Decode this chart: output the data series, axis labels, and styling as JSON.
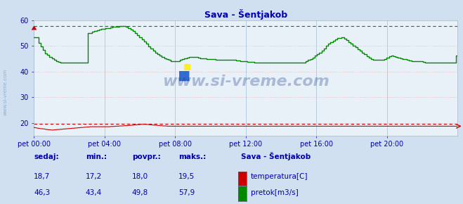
{
  "title": "Sava - Šentjakob",
  "bg_color": "#d0e0f0",
  "plot_bg_color": "#e8f0f8",
  "grid_color_v": "#b8cce0",
  "grid_color_h": "#e8b8b8",
  "title_color": "#0000bb",
  "label_color": "#0000aa",
  "tick_color": "#0000aa",
  "xlim_min": 0,
  "xlim_max": 288,
  "ylim_min": 15,
  "ylim_max": 60,
  "yticks": [
    20,
    30,
    40,
    50,
    60
  ],
  "xtick_positions": [
    0,
    48,
    96,
    144,
    192,
    240
  ],
  "xtick_labels": [
    "pet 00:00",
    "pet 04:00",
    "pet 08:00",
    "pet 12:00",
    "pet 16:00",
    "pet 20:00"
  ],
  "temp_color": "#cc0000",
  "flow_color": "#008800",
  "temp_max_line": 19.5,
  "flow_max_line": 57.9,
  "watermark": "www.si-vreme.com",
  "watermark_color": "#1a3a8a",
  "sidebar_text": "www.si-vreme.com",
  "legend_title": "Sava - Šentjakob",
  "legend_items": [
    {
      "label": "temperatura[C]",
      "color": "#cc0000"
    },
    {
      "label": "pretok[m3/s]",
      "color": "#008800"
    }
  ],
  "table_headers": [
    "sedaj:",
    "min.:",
    "povpr.:",
    "maks.:"
  ],
  "table_data": [
    [
      "18,7",
      "17,2",
      "18,0",
      "19,5"
    ],
    [
      "46,3",
      "43,4",
      "49,8",
      "57,9"
    ]
  ],
  "temp_data": [
    18.2,
    18.1,
    18.0,
    17.9,
    17.8,
    17.7,
    17.7,
    17.6,
    17.5,
    17.4,
    17.3,
    17.3,
    17.2,
    17.2,
    17.3,
    17.3,
    17.4,
    17.4,
    17.5,
    17.5,
    17.6,
    17.6,
    17.7,
    17.7,
    17.8,
    17.8,
    17.9,
    17.9,
    18.0,
    18.0,
    18.1,
    18.1,
    18.2,
    18.2,
    18.3,
    18.3,
    18.4,
    18.4,
    18.5,
    18.5,
    18.5,
    18.5,
    18.5,
    18.5,
    18.5,
    18.5,
    18.5,
    18.5,
    18.5,
    18.5,
    18.5,
    18.5,
    18.6,
    18.6,
    18.6,
    18.7,
    18.7,
    18.7,
    18.8,
    18.8,
    18.8,
    18.9,
    18.9,
    18.9,
    19.0,
    19.0,
    19.1,
    19.1,
    19.2,
    19.2,
    19.3,
    19.3,
    19.4,
    19.4,
    19.5,
    19.4,
    19.4,
    19.3,
    19.3,
    19.2,
    19.2,
    19.1,
    19.1,
    19.0,
    19.0,
    18.9,
    18.9,
    18.8,
    18.8,
    18.8,
    18.7,
    18.7,
    18.7,
    18.7,
    18.7,
    18.7,
    18.7,
    18.7,
    18.7,
    18.7,
    18.7,
    18.7,
    18.7,
    18.7,
    18.7,
    18.7,
    18.7,
    18.7,
    18.7,
    18.7,
    18.7,
    18.7,
    18.7,
    18.7,
    18.7,
    18.7,
    18.7,
    18.7,
    18.7,
    18.7,
    18.7,
    18.7,
    18.7,
    18.7,
    18.7,
    18.7,
    18.7,
    18.7,
    18.7,
    18.7,
    18.7,
    18.7,
    18.7,
    18.7,
    18.7,
    18.7,
    18.7,
    18.7,
    18.7,
    18.7,
    18.7,
    18.7,
    18.7,
    18.7,
    18.7,
    18.7,
    18.7,
    18.7,
    18.7,
    18.7,
    18.7,
    18.7,
    18.7,
    18.7,
    18.7,
    18.7,
    18.7,
    18.7,
    18.7,
    18.7,
    18.7,
    18.7,
    18.7,
    18.7,
    18.7,
    18.7,
    18.7,
    18.7,
    18.7,
    18.7,
    18.7,
    18.7,
    18.7,
    18.7,
    18.7,
    18.7,
    18.7,
    18.7,
    18.7,
    18.7,
    18.7,
    18.7,
    18.7,
    18.7,
    18.7,
    18.7,
    18.7,
    18.7,
    18.7,
    18.7,
    18.7,
    18.7,
    18.7,
    18.7,
    18.7,
    18.7,
    18.7,
    18.7,
    18.7,
    18.7,
    18.7,
    18.7,
    18.7,
    18.7,
    18.7,
    18.7,
    18.7,
    18.7,
    18.7,
    18.7,
    18.7,
    18.7,
    18.7,
    18.7,
    18.7,
    18.7,
    18.7,
    18.7,
    18.7,
    18.7,
    18.7,
    18.7,
    18.7,
    18.7,
    18.7,
    18.7,
    18.7,
    18.7,
    18.7,
    18.7,
    18.7,
    18.7,
    18.7,
    18.7,
    18.7,
    18.7,
    18.7,
    18.7,
    18.7,
    18.7,
    18.7,
    18.7,
    18.7,
    18.7,
    18.7,
    18.7,
    18.7,
    18.7,
    18.7,
    18.7,
    18.7,
    18.7,
    18.7,
    18.7,
    18.7,
    18.7,
    18.7,
    18.7,
    18.7,
    18.7,
    18.7,
    18.7,
    18.7,
    18.7,
    18.7,
    18.7,
    18.7,
    18.7,
    18.7,
    18.7,
    18.7,
    18.7,
    18.7,
    18.7,
    18.7,
    18.7,
    18.7,
    18.7,
    18.7,
    18.7,
    18.7,
    18.7,
    18.7,
    18.7,
    18.7,
    18.7
  ],
  "flow_data": [
    53.4,
    53.4,
    53.4,
    53.4,
    51.2,
    51.2,
    49.8,
    49.8,
    48.5,
    48.5,
    47.2,
    47.2,
    46.5,
    46.5,
    45.8,
    45.8,
    45.2,
    45.2,
    44.5,
    44.5,
    44.1,
    44.1,
    43.7,
    43.7,
    43.4,
    43.4,
    43.4,
    43.4,
    43.4,
    43.4,
    43.4,
    43.4,
    43.4,
    43.4,
    43.4,
    43.4,
    43.4,
    43.4,
    43.4,
    43.4,
    43.4,
    43.4,
    43.4,
    43.4,
    43.4,
    43.4,
    43.4,
    43.4,
    55.0,
    55.0,
    55.0,
    55.0,
    55.5,
    55.5,
    55.8,
    55.8,
    56.2,
    56.2,
    56.5,
    56.5,
    56.7,
    56.7,
    56.8,
    56.8,
    57.0,
    57.0,
    57.1,
    57.1,
    57.2,
    57.2,
    57.4,
    57.4,
    57.5,
    57.5,
    57.6,
    57.6,
    57.7,
    57.7,
    57.8,
    57.8,
    57.9,
    57.9,
    57.5,
    57.5,
    57.0,
    57.0,
    56.5,
    56.5,
    55.8,
    55.8,
    55.0,
    55.0,
    54.2,
    54.2,
    53.4,
    53.4,
    52.6,
    52.6,
    51.8,
    51.8,
    50.8,
    50.8,
    49.8,
    49.8,
    49.0,
    49.0,
    48.2,
    48.2,
    47.5,
    47.5,
    46.8,
    46.8,
    46.2,
    46.2,
    45.6,
    45.6,
    45.2,
    45.2,
    44.8,
    44.8,
    44.5,
    44.5,
    44.2,
    44.2,
    44.0,
    44.0,
    44.0,
    44.0,
    44.2,
    44.2,
    44.5,
    44.5,
    44.8,
    44.8,
    45.2,
    45.2,
    45.5,
    45.5,
    45.7,
    45.7,
    45.8,
    45.8,
    45.7,
    45.7,
    45.6,
    45.6,
    45.4,
    45.4,
    45.3,
    45.3,
    45.2,
    45.2,
    45.1,
    45.1,
    45.0,
    45.0,
    45.0,
    45.0,
    44.9,
    44.9,
    44.8,
    44.8,
    44.7,
    44.7,
    44.6,
    44.6,
    44.5,
    44.5,
    44.5,
    44.5,
    44.5,
    44.5,
    44.5,
    44.5,
    44.5,
    44.5,
    44.5,
    44.5,
    44.5,
    44.5,
    44.4,
    44.4,
    44.3,
    44.3,
    44.2,
    44.2,
    44.1,
    44.1,
    44.0,
    44.0,
    43.9,
    43.9,
    43.8,
    43.8,
    43.7,
    43.7,
    43.6,
    43.6,
    43.5,
    43.5,
    43.5,
    43.5,
    43.5,
    43.5,
    43.4,
    43.4,
    43.5,
    43.5,
    43.5,
    43.5,
    43.5,
    43.5,
    43.5,
    43.5,
    43.5,
    43.5,
    43.5,
    43.5,
    43.5,
    43.5,
    43.5,
    43.5,
    43.5,
    43.5,
    43.5,
    43.5,
    43.5,
    43.5,
    43.5,
    43.5,
    43.5,
    43.5,
    43.5,
    43.5,
    43.5,
    43.5,
    43.5,
    43.5,
    43.5,
    43.5,
    43.5,
    43.5,
    44.0,
    44.0,
    44.5,
    44.5,
    45.0,
    45.0,
    45.5,
    45.5,
    46.2,
    46.2,
    46.9,
    46.9,
    47.5,
    47.5,
    48.2,
    48.2,
    49.0,
    49.0,
    50.0,
    50.0,
    51.0,
    51.0,
    51.5,
    51.5,
    52.0,
    52.0,
    52.5,
    52.5,
    53.0,
    53.0,
    53.2,
    53.2,
    53.4,
    53.4,
    52.8,
    52.8,
    52.2,
    52.2,
    51.5,
    51.5,
    50.8,
    50.8,
    50.2,
    50.2,
    49.5,
    49.5,
    48.8,
    48.8,
    48.1,
    48.1,
    47.5,
    47.5,
    46.8,
    46.8,
    46.1,
    46.1,
    45.5,
    45.5,
    45.0,
    45.0,
    44.7,
    44.7,
    44.5,
    44.5,
    44.5,
    44.5,
    44.5,
    44.5,
    44.5,
    44.5,
    45.0,
    45.0,
    45.5,
    45.5,
    46.0,
    46.0,
    46.3,
    46.3,
    46.0,
    46.0,
    45.7,
    45.7,
    45.5,
    45.5,
    45.2,
    45.2,
    45.0,
    45.0,
    44.8,
    44.8,
    44.5,
    44.5,
    44.3,
    44.3,
    44.2,
    44.2,
    44.1,
    44.1,
    44.0,
    44.0,
    44.0,
    44.0,
    44.0,
    44.0,
    43.8,
    43.8,
    43.6,
    43.6,
    43.5,
    43.5,
    43.5,
    43.5,
    43.5,
    43.5,
    43.5,
    43.5,
    43.5,
    43.5,
    43.5,
    43.5,
    43.5,
    43.5,
    43.5,
    43.5,
    43.5,
    43.5,
    43.5,
    43.5,
    43.5,
    43.5,
    43.5,
    43.5,
    43.5,
    43.5,
    46.3,
    46.3
  ]
}
